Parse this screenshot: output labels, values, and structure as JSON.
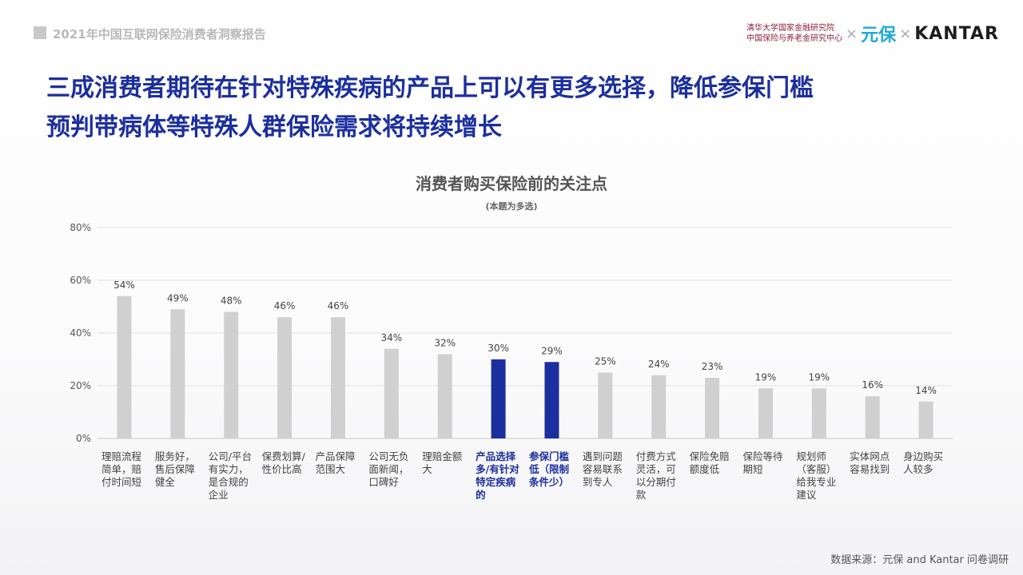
{
  "header": {
    "report_title": "2021年中国互联网保险消费者洞察报告",
    "logo_tsinghua_line1": "清华大学国家金融研究院",
    "logo_tsinghua_line2": "中国保险与养老金研究中心",
    "logo_times_1": "×",
    "logo_yuanbao": "元保",
    "logo_times_2": "×",
    "logo_kantar": "KANTAR"
  },
  "headline": {
    "line1": "三成消费者期待在针对特殊疾病的产品上可以有更多选择，降低参保门槛",
    "line2": "预判带病体等特殊人群保险需求将持续增长"
  },
  "footer": {
    "source": "数据来源：元保 and Kantar 问卷调研"
  },
  "colors": {
    "headline": "#1c2f9e",
    "bar_default": "#d0d0d0",
    "bar_highlight": "#1c2f9e",
    "grid": "#e2e2e2"
  },
  "chart_data": {
    "type": "bar",
    "title": "消费者购买保险前的关注点",
    "subtitle": "(本题为多选)",
    "ylim": [
      0,
      80
    ],
    "yticks": [
      0,
      20,
      40,
      60,
      80
    ],
    "ytick_labels": [
      "0%",
      "20%",
      "40%",
      "60%",
      "80%"
    ],
    "grid": true,
    "categories": [
      [
        "理赔流程",
        "简单，赔",
        "付时间短"
      ],
      [
        "服务好，",
        "售后保障",
        "健全"
      ],
      [
        "公司/平台",
        "有实力，",
        "是合规的",
        "企业"
      ],
      [
        "保费划算/",
        "性价比高"
      ],
      [
        "产品保障",
        "范围大"
      ],
      [
        "公司无负",
        "面新闻，",
        "口碑好"
      ],
      [
        "理赔金额",
        "大"
      ],
      [
        "产品选择",
        "多/有针对",
        "特定疾病",
        "的"
      ],
      [
        "参保门槛",
        "低（限制",
        "条件少）"
      ],
      [
        "遇到问题",
        "容易联系",
        "到专人"
      ],
      [
        "付费方式",
        "灵活，可",
        "以分期付",
        "款"
      ],
      [
        "保险免赔",
        "额度低"
      ],
      [
        "保险等待",
        "期短"
      ],
      [
        "规划师",
        "（客服）",
        "给我专业",
        "建议"
      ],
      [
        "实体网点",
        "容易找到"
      ],
      [
        "身边购买",
        "人较多"
      ]
    ],
    "values": [
      54,
      49,
      48,
      46,
      46,
      34,
      32,
      30,
      29,
      25,
      24,
      23,
      19,
      19,
      16,
      14
    ],
    "value_labels": [
      "54%",
      "49%",
      "48%",
      "46%",
      "46%",
      "34%",
      "32%",
      "30%",
      "29%",
      "25%",
      "24%",
      "23%",
      "19%",
      "19%",
      "16%",
      "14%"
    ],
    "highlighted": [
      7,
      8
    ]
  }
}
